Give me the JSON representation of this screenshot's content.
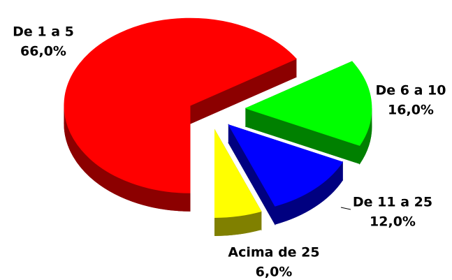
{
  "chart_data": {
    "type": "pie",
    "categories": [
      "De 1 a 5",
      "De 6 a 10",
      "De 11 a 25",
      "Acima de 25"
    ],
    "values": [
      66,
      16,
      12,
      6
    ],
    "value_labels": [
      "66,0%",
      "16,0%",
      "12,0%",
      "6,0%"
    ],
    "colors": [
      "#ff0000",
      "#00ff00",
      "#0000ff",
      "#ffff00"
    ],
    "side_colors": [
      "#8c0000",
      "#008000",
      "#000080",
      "#808000"
    ]
  }
}
